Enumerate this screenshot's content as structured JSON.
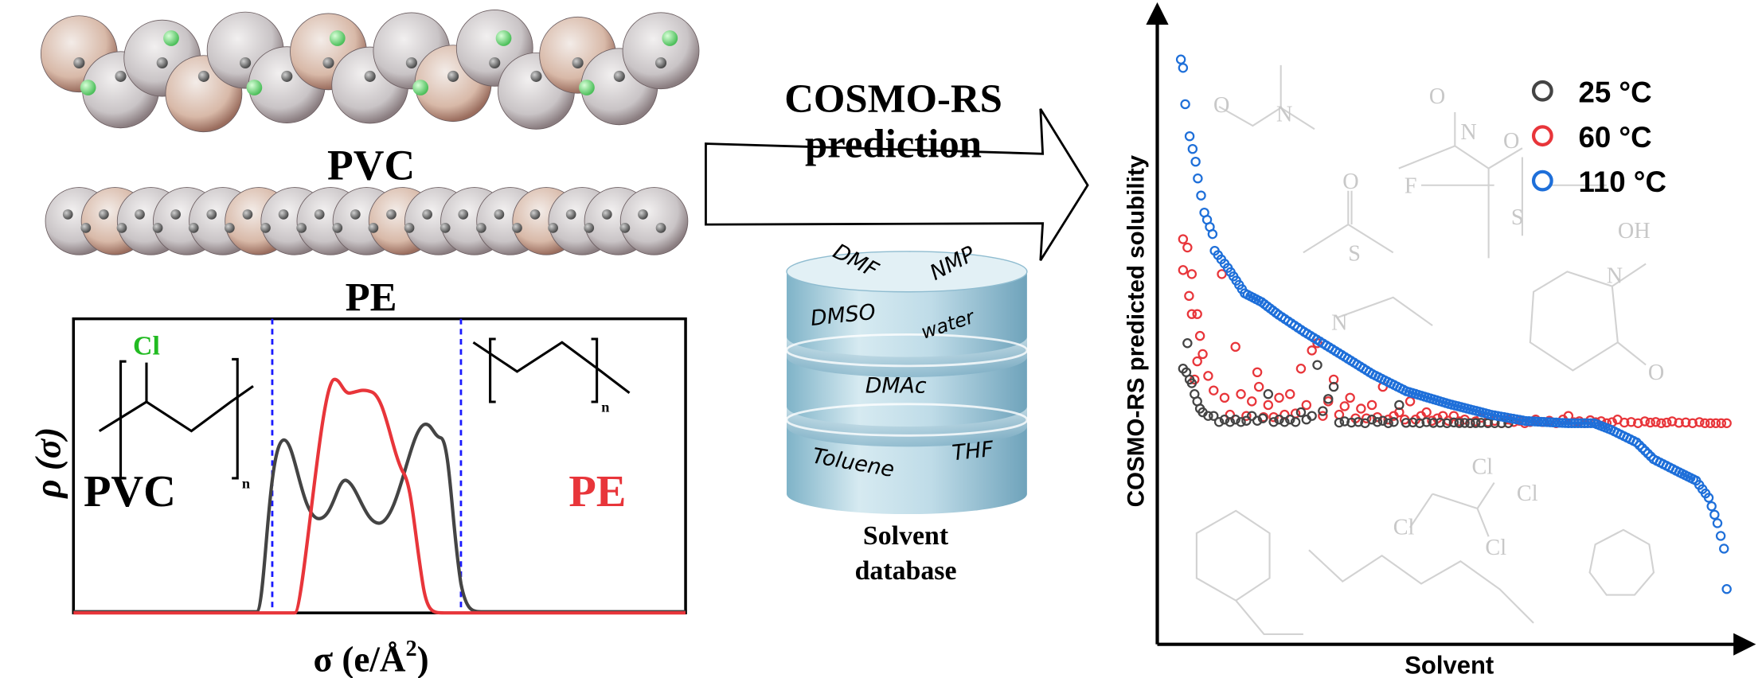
{
  "molecules": {
    "pvc_label": "PVC",
    "pe_label": "PE"
  },
  "sigma_profile": {
    "ylabel": "ρ (σ)",
    "xlabel_main": "σ (e/Å",
    "xlabel_sup": "2",
    "xlabel_end": ")",
    "pvc_label": "PVC",
    "pe_label": "PE",
    "cl_label": "Cl",
    "subscript_n": "n",
    "colors": {
      "pvc": "#444444",
      "pe": "#e8353a",
      "cl": "#22bb22",
      "divider": "#1a1aff"
    }
  },
  "arrow": {
    "line1": "COSMO-RS",
    "line2": "prediction"
  },
  "database": {
    "solvents": [
      "DMF",
      "NMP",
      "DMSO",
      "water",
      "DMAc",
      "Toluene",
      "THF"
    ],
    "label_line1": "Solvent",
    "label_line2": "database"
  },
  "background_atom_labels": [
    "O",
    "N",
    "O",
    "N",
    "O",
    "S",
    "F",
    "S",
    "OH",
    "O",
    "N",
    "N",
    "O",
    "Cl",
    "Cl",
    "Cl",
    "Cl"
  ],
  "chart_data": {
    "type": "scatter",
    "xlabel": "Solvent",
    "ylabel": "COSMO-RS predicted solubility",
    "ylim": [
      -0.5,
      1.05
    ],
    "legend_position": "top-right",
    "grid": false,
    "series": [
      {
        "name": "25 °C",
        "color": "#444444",
        "points": [
          [
            0.004,
            0.15
          ],
          [
            0.012,
            0.22
          ],
          [
            0.01,
            0.14
          ],
          [
            0.016,
            0.12
          ],
          [
            0.02,
            0.11
          ],
          [
            0.025,
            0.08
          ],
          [
            0.03,
            0.06
          ],
          [
            0.035,
            0.04
          ],
          [
            0.04,
            0.03
          ],
          [
            0.05,
            0.02
          ],
          [
            0.06,
            0.02
          ],
          [
            0.08,
            0.01
          ],
          [
            0.1,
            0.01
          ],
          [
            0.13,
            0.02
          ],
          [
            0.16,
            0.08
          ],
          [
            0.18,
            0.01
          ],
          [
            0.2,
            0.01
          ],
          [
            0.22,
            0.03
          ],
          [
            0.25,
            0.16
          ],
          [
            0.28,
            0.1
          ],
          [
            0.3,
            0.005
          ],
          [
            0.35,
            0.01
          ],
          [
            0.4,
            0.05
          ],
          [
            0.45,
            0.003
          ],
          [
            0.5,
            0.002
          ],
          [
            0.55,
            0.001
          ],
          [
            0.6,
            0
          ]
        ]
      },
      {
        "name": "60 °C",
        "color": "#e8353a",
        "points": [
          [
            0.004,
            0.506
          ],
          [
            0.012,
            0.483
          ],
          [
            0.004,
            0.421
          ],
          [
            0.02,
            0.41
          ],
          [
            0.015,
            0.35
          ],
          [
            0.02,
            0.3
          ],
          [
            0.03,
            0.3
          ],
          [
            0.035,
            0.24
          ],
          [
            0.04,
            0.19
          ],
          [
            0.03,
            0.17
          ],
          [
            0.025,
            0.12
          ],
          [
            0.05,
            0.13
          ],
          [
            0.06,
            0.09
          ],
          [
            0.075,
            0.41
          ],
          [
            0.08,
            0.07
          ],
          [
            0.1,
            0.21
          ],
          [
            0.11,
            0.08
          ],
          [
            0.13,
            0.06
          ],
          [
            0.14,
            0.14
          ],
          [
            0.143,
            0.1
          ],
          [
            0.16,
            0.05
          ],
          [
            0.18,
            0.07
          ],
          [
            0.2,
            0.08
          ],
          [
            0.22,
            0.15
          ],
          [
            0.24,
            0.2
          ],
          [
            0.25,
            0.22
          ],
          [
            0.27,
            0.06
          ],
          [
            0.28,
            0.12
          ],
          [
            0.31,
            0.07
          ],
          [
            0.33,
            0.04
          ],
          [
            0.35,
            0.05
          ],
          [
            0.37,
            0.1
          ],
          [
            0.4,
            0.03
          ],
          [
            0.42,
            0.06
          ],
          [
            0.45,
            0.03
          ],
          [
            0.48,
            0.02
          ],
          [
            0.5,
            0.02
          ],
          [
            0.55,
            0.015
          ],
          [
            0.6,
            0.01
          ],
          [
            0.65,
            0.01
          ],
          [
            0.7,
            0.01
          ],
          [
            0.71,
            0.02
          ],
          [
            0.75,
            0.008
          ],
          [
            0.8,
            0.01
          ],
          [
            0.85,
            0.005
          ],
          [
            0.9,
            0.005
          ],
          [
            0.95,
            0.003
          ],
          [
            1,
            0
          ]
        ]
      },
      {
        "name": "110 °C",
        "color": "#1e6fd9",
        "points": [
          [
            0,
            1
          ],
          [
            0.004,
            0.977
          ],
          [
            0.008,
            0.877
          ],
          [
            0.016,
            0.789
          ],
          [
            0.027,
            0.719
          ],
          [
            0.031,
            0.673
          ],
          [
            0.043,
            0.579
          ],
          [
            0.058,
            0.52
          ],
          [
            0.062,
            0.474
          ],
          [
            0.086,
            0.427
          ],
          [
            0.117,
            0.357
          ],
          [
            0.148,
            0.333
          ],
          [
            0.179,
            0.298
          ],
          [
            0.226,
            0.251
          ],
          [
            0.289,
            0.193
          ],
          [
            0.351,
            0.135
          ],
          [
            0.413,
            0.088
          ],
          [
            0.491,
            0.053
          ],
          [
            0.569,
            0.023
          ],
          [
            0.632,
            0.006
          ],
          [
            0.71,
            0
          ],
          [
            0.757,
            0
          ],
          [
            0.788,
            -0.018
          ],
          [
            0.835,
            -0.053
          ],
          [
            0.866,
            -0.099
          ],
          [
            0.913,
            -0.135
          ],
          [
            0.944,
            -0.158
          ],
          [
            0.967,
            -0.205
          ],
          [
            0.983,
            -0.275
          ],
          [
            0.995,
            -0.345
          ],
          [
            1,
            -0.456
          ]
        ]
      }
    ]
  }
}
